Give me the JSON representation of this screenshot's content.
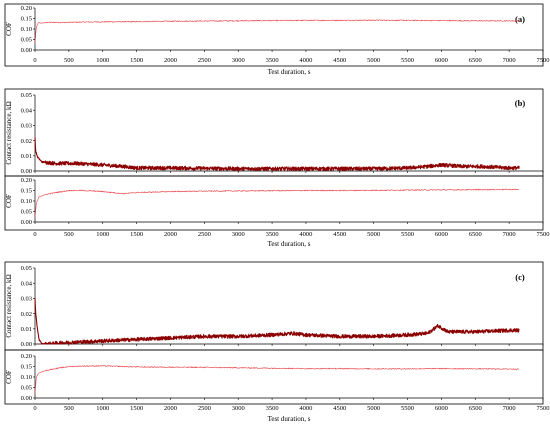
{
  "chart_data": [
    {
      "id": "a-cof",
      "type": "line",
      "panel_label": "(a)",
      "ylabel": "COF",
      "xlabel": "Test duration, s",
      "xlim": [
        0,
        7500
      ],
      "ylim": [
        0,
        0.2
      ],
      "yticks": [
        "0.00",
        "0.05",
        "0.10",
        "0.15",
        "0.20"
      ],
      "xticks": [
        "0",
        "500",
        "1000",
        "1500",
        "2000",
        "2500",
        "3000",
        "3500",
        "4000",
        "4500",
        "5000",
        "5500",
        "6000",
        "6500",
        "7000",
        "7500"
      ],
      "series": [
        {
          "color": "#e8464b",
          "x": [
            0,
            20,
            50,
            100,
            200,
            400,
            700,
            1000,
            1500,
            2000,
            2500,
            3000,
            3500,
            4000,
            4500,
            5000,
            5500,
            6000,
            6500,
            7000,
            7150
          ],
          "y": [
            0.03,
            0.11,
            0.13,
            0.128,
            0.132,
            0.131,
            0.133,
            0.134,
            0.135,
            0.137,
            0.138,
            0.139,
            0.14,
            0.141,
            0.141,
            0.142,
            0.141,
            0.14,
            0.139,
            0.139,
            0.138
          ]
        }
      ]
    },
    {
      "id": "b-resistance",
      "type": "line",
      "panel_label": "(b)",
      "ylabel": "Contact resistance, kΩ",
      "xlim": [
        0,
        7500
      ],
      "ylim": [
        0,
        0.05
      ],
      "yticks": [
        "0.00",
        "0.01",
        "0.02",
        "0.03",
        "0.04",
        "0.05"
      ],
      "xticks": [],
      "series": [
        {
          "color": "#8b0000",
          "x": [
            0,
            10,
            40,
            100,
            300,
            600,
            1000,
            1300,
            1500,
            2000,
            3000,
            4000,
            5000,
            5500,
            5800,
            6000,
            6300,
            6600,
            7000,
            7150
          ],
          "y": [
            0.022,
            0.013,
            0.009,
            0.006,
            0.005,
            0.005,
            0.004,
            0.003,
            0.002,
            0.002,
            0.0015,
            0.0015,
            0.0015,
            0.002,
            0.003,
            0.004,
            0.003,
            0.003,
            0.002,
            0.002
          ]
        }
      ]
    },
    {
      "id": "b-cof",
      "type": "line",
      "ylabel": "COF",
      "xlabel": "Test duration, s",
      "xlim": [
        0,
        7500
      ],
      "ylim": [
        0,
        0.2
      ],
      "yticks": [
        "0.00",
        "0.05",
        "0.10",
        "0.15",
        "0.20"
      ],
      "xticks": [
        "0",
        "500",
        "1000",
        "1500",
        "2000",
        "2500",
        "3000",
        "3500",
        "4000",
        "4500",
        "5000",
        "5500",
        "6000",
        "6500",
        "7000",
        "7500"
      ],
      "series": [
        {
          "color": "#e8464b",
          "x": [
            0,
            20,
            60,
            150,
            300,
            500,
            700,
            1000,
            1300,
            1500,
            2000,
            2500,
            3000,
            3500,
            4000,
            4500,
            5000,
            5500,
            6000,
            6500,
            7000,
            7150
          ],
          "y": [
            0.02,
            0.09,
            0.12,
            0.13,
            0.14,
            0.15,
            0.15,
            0.145,
            0.135,
            0.14,
            0.145,
            0.147,
            0.148,
            0.149,
            0.15,
            0.15,
            0.151,
            0.152,
            0.153,
            0.154,
            0.155,
            0.155
          ]
        }
      ]
    },
    {
      "id": "c-resistance",
      "type": "line",
      "panel_label": "(c)",
      "ylabel": "Contact resistance, kΩ",
      "xlim": [
        0,
        7500
      ],
      "ylim": [
        0,
        0.05
      ],
      "yticks": [
        "0.00",
        "0.01",
        "0.02",
        "0.03",
        "0.04",
        "0.05"
      ],
      "xticks": [],
      "series": [
        {
          "color": "#8b0000",
          "x": [
            0,
            10,
            30,
            60,
            100,
            200,
            300,
            500,
            1000,
            1500,
            2000,
            2500,
            3000,
            3500,
            3800,
            4000,
            4500,
            5000,
            5500,
            5800,
            5950,
            6100,
            6500,
            7000,
            7150
          ],
          "y": [
            0.03,
            0.02,
            0.012,
            0.003,
            0.0,
            0.0,
            0.0005,
            0.001,
            0.002,
            0.003,
            0.004,
            0.005,
            0.005,
            0.006,
            0.007,
            0.006,
            0.005,
            0.005,
            0.006,
            0.007,
            0.012,
            0.008,
            0.008,
            0.009,
            0.009
          ]
        }
      ]
    },
    {
      "id": "c-cof",
      "type": "line",
      "ylabel": "COF",
      "xlabel": "Test duration, s",
      "xlim": [
        0,
        7500
      ],
      "ylim": [
        0,
        0.2
      ],
      "yticks": [
        "0.00",
        "0.05",
        "0.10",
        "0.15",
        "0.20"
      ],
      "xticks": [
        "0",
        "500",
        "1000",
        "1500",
        "2000",
        "2500",
        "3000",
        "3500",
        "4000",
        "4500",
        "5000",
        "5500",
        "6000",
        "6500",
        "7000",
        "7500"
      ],
      "series": [
        {
          "color": "#e8464b",
          "x": [
            0,
            20,
            60,
            150,
            300,
            500,
            700,
            1000,
            1300,
            1500,
            2000,
            2500,
            3000,
            3500,
            4000,
            4500,
            5000,
            5500,
            6000,
            6500,
            7000,
            7150
          ],
          "y": [
            0.02,
            0.1,
            0.12,
            0.13,
            0.14,
            0.15,
            0.152,
            0.153,
            0.15,
            0.148,
            0.147,
            0.146,
            0.144,
            0.142,
            0.14,
            0.14,
            0.139,
            0.139,
            0.14,
            0.139,
            0.138,
            0.138
          ]
        }
      ]
    }
  ]
}
